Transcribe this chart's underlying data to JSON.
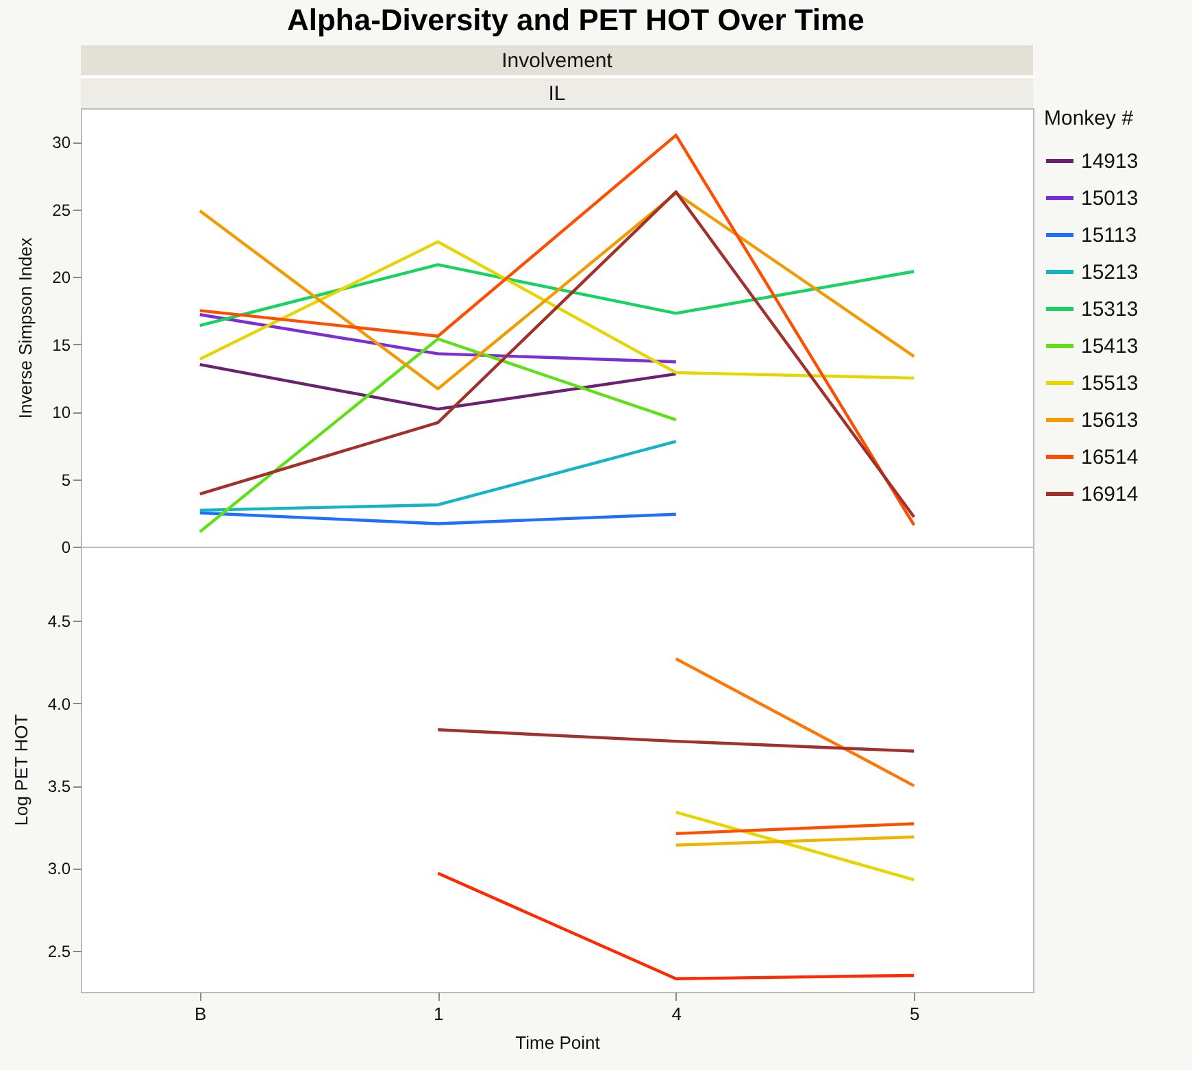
{
  "chart_data": [
    {
      "type": "line",
      "title": "Alpha-Diversity and PET HOT Over Time",
      "annotations": [
        "Involvement",
        "IL"
      ],
      "ylabel": "Inverse Simpson Index",
      "legend_title": "Monkey #",
      "legend": "right",
      "tick_labels": "y",
      "categories": [
        "B",
        "1",
        "4",
        "5"
      ],
      "ylim": [
        0,
        32.5
      ],
      "yticks": [
        0,
        5,
        10,
        15,
        20,
        25,
        30
      ],
      "series": [
        {
          "name": "14913",
          "color": "#6b2070",
          "values": [
            13.5,
            10.2,
            12.8,
            null
          ]
        },
        {
          "name": "15013",
          "color": "#7b2ed6",
          "values": [
            17.2,
            14.3,
            13.7,
            null
          ]
        },
        {
          "name": "15113",
          "color": "#1f6fff",
          "values": [
            2.5,
            1.7,
            2.4,
            null
          ]
        },
        {
          "name": "15213",
          "color": "#14b3c8",
          "values": [
            2.7,
            3.1,
            7.8,
            null
          ]
        },
        {
          "name": "15313",
          "color": "#17d35f",
          "values": [
            16.4,
            20.9,
            17.3,
            20.4
          ]
        },
        {
          "name": "15413",
          "color": "#5fe014",
          "values": [
            1.1,
            15.4,
            9.4,
            null
          ]
        },
        {
          "name": "15513",
          "color": "#e6d500",
          "values": [
            13.9,
            22.6,
            12.9,
            12.5
          ]
        },
        {
          "name": "15613",
          "color": "#f29a00",
          "values": [
            24.9,
            11.7,
            26.2,
            14.1
          ]
        },
        {
          "name": "16514",
          "color": "#ff4e00",
          "values": [
            17.5,
            15.6,
            30.5,
            1.6
          ]
        },
        {
          "name": "16914",
          "color": "#a3312b",
          "values": [
            3.9,
            9.2,
            26.3,
            2.2
          ]
        }
      ]
    },
    {
      "type": "line",
      "xlabel": "Time Point",
      "ylabel": "Log PET HOT",
      "categories": [
        "B",
        "1",
        "4",
        "5"
      ],
      "ylim": [
        2.25,
        4.95
      ],
      "yticks": [
        {
          "value": 2.5,
          "label": "2.5"
        },
        {
          "value": 3,
          "label": "3.0"
        },
        {
          "value": 3.5,
          "label": "3.5"
        },
        {
          "value": 4,
          "label": "4.0"
        },
        {
          "value": 4.5,
          "label": "4.5"
        }
      ],
      "series": [
        {
          "color": "#ff7700",
          "values": [
            null,
            null,
            4.27,
            3.5
          ]
        },
        {
          "color": "#a3312b",
          "values": [
            null,
            3.84,
            3.77,
            3.71
          ]
        },
        {
          "color": "#e6d500",
          "values": [
            null,
            null,
            3.34,
            2.93
          ]
        },
        {
          "color": "#ff4e00",
          "values": [
            null,
            null,
            3.21,
            3.27
          ]
        },
        {
          "color": "#f0b400",
          "values": [
            null,
            null,
            3.14,
            3.19
          ]
        },
        {
          "color": "#ff2a00",
          "values": [
            null,
            2.97,
            2.33,
            2.35
          ]
        }
      ]
    }
  ]
}
